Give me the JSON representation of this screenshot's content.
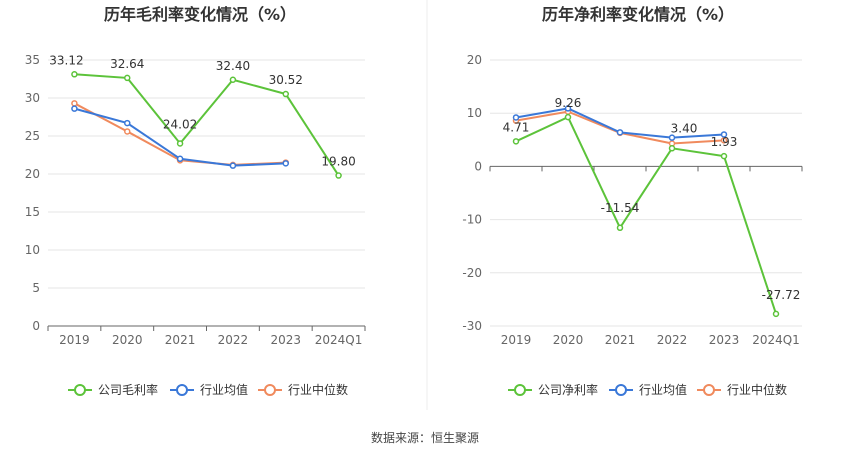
{
  "source_note": "数据来源：恒生聚源",
  "chart_data": [
    {
      "type": "line",
      "title": "历年毛利率变化情况（%）",
      "categories": [
        "2019",
        "2020",
        "2021",
        "2022",
        "2023",
        "2024Q1"
      ],
      "ylim": [
        0,
        35
      ],
      "yticks": [
        0,
        5,
        10,
        15,
        20,
        25,
        30,
        35
      ],
      "grid": true,
      "legend_position": "bottom",
      "series": [
        {
          "name": "公司毛利率",
          "color": "#5cc33a",
          "values": [
            33.12,
            32.64,
            24.02,
            32.4,
            30.52,
            19.8
          ],
          "labels": [
            "33.12",
            "32.64",
            "24.02",
            "32.40",
            "30.52",
            "19.80"
          ]
        },
        {
          "name": "行业均值",
          "color": "#3a78d8",
          "values": [
            28.6,
            26.7,
            22.0,
            21.1,
            21.4,
            null
          ]
        },
        {
          "name": "行业中位数",
          "color": "#f08a5d",
          "values": [
            29.3,
            25.6,
            21.8,
            21.2,
            21.5,
            null
          ]
        }
      ]
    },
    {
      "type": "line",
      "title": "历年净利率变化情况（%）",
      "categories": [
        "2019",
        "2020",
        "2021",
        "2022",
        "2023",
        "2024Q1"
      ],
      "ylim": [
        -30,
        20
      ],
      "yticks": [
        -30,
        -20,
        -10,
        0,
        10,
        20
      ],
      "grid": true,
      "legend_position": "bottom",
      "series": [
        {
          "name": "公司净利率",
          "color": "#5cc33a",
          "values": [
            4.71,
            9.26,
            -11.54,
            3.4,
            1.93,
            -27.72
          ],
          "labels": [
            "4.71",
            "9.26",
            "-11.54",
            "3.40",
            "1.93",
            "-27.72"
          ]
        },
        {
          "name": "行业均值",
          "color": "#3a78d8",
          "values": [
            9.2,
            10.9,
            6.4,
            5.4,
            6.0,
            null
          ]
        },
        {
          "name": "行业中位数",
          "color": "#f08a5d",
          "values": [
            8.6,
            10.3,
            6.3,
            4.3,
            4.9,
            null
          ]
        }
      ]
    }
  ]
}
